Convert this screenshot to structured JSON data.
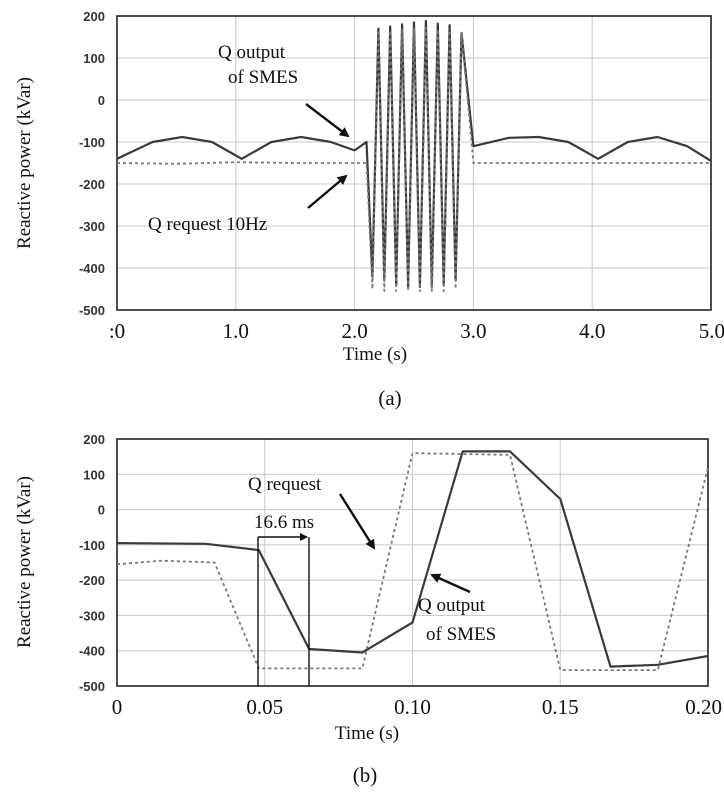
{
  "chart_data": [
    {
      "panel": "(a)",
      "type": "line",
      "xlabel": "Time (s)",
      "ylabel": "Reactive power (kVar)",
      "xlim": [
        0,
        5.0
      ],
      "ylim": [
        -500,
        200
      ],
      "x_ticks": [
        ":0",
        "1.0",
        "2.0",
        "3.0",
        "4.0",
        "5.0"
      ],
      "y_ticks": [
        "200",
        "100",
        "0",
        "-100",
        "-200",
        "-300",
        "-400",
        "-500"
      ],
      "grid": true,
      "series": [
        {
          "name": "Q output of SMES",
          "style": "solid",
          "x": [
            0,
            0.3,
            0.55,
            0.8,
            1.05,
            1.3,
            1.55,
            1.8,
            2.0,
            2.1,
            2.15,
            2.2,
            2.25,
            2.3,
            2.35,
            2.4,
            2.45,
            2.5,
            2.55,
            2.6,
            2.65,
            2.7,
            2.75,
            2.8,
            2.85,
            2.9,
            3.0,
            3.3,
            3.55,
            3.8,
            4.05,
            4.3,
            4.55,
            4.8,
            5.0
          ],
          "y": [
            -140,
            -100,
            -88,
            -100,
            -140,
            -100,
            -88,
            -100,
            -120,
            -100,
            -420,
            170,
            -430,
            175,
            -440,
            180,
            -445,
            185,
            -445,
            188,
            -445,
            182,
            -440,
            178,
            -430,
            160,
            -110,
            -90,
            -88,
            -100,
            -140,
            -100,
            -88,
            -110,
            -145
          ]
        },
        {
          "name": "Q request 10Hz",
          "style": "dashed",
          "x": [
            0,
            0.5,
            1.0,
            1.5,
            2.0,
            2.1,
            2.15,
            2.2,
            2.25,
            2.3,
            2.35,
            2.4,
            2.45,
            2.5,
            2.55,
            2.6,
            2.65,
            2.7,
            2.75,
            2.8,
            2.85,
            2.9,
            3.0,
            3.5,
            4.0,
            4.5,
            5.0
          ],
          "y": [
            -150,
            -152,
            -148,
            -150,
            -150,
            -150,
            -450,
            160,
            -455,
            165,
            -455,
            170,
            -455,
            170,
            -455,
            172,
            -455,
            168,
            -455,
            165,
            -450,
            160,
            -150,
            -150,
            -150,
            -150,
            -150
          ]
        }
      ],
      "annotations": [
        {
          "text_lines": [
            "Q output",
            "of SMES"
          ],
          "target": "Q output of SMES"
        },
        {
          "text_lines": [
            "Q request 10Hz"
          ],
          "target": "Q request 10Hz"
        }
      ]
    },
    {
      "panel": "(b)",
      "type": "line",
      "xlabel": "Time (s)",
      "ylabel": "Reactive power (kVar)",
      "xlim": [
        0,
        0.2
      ],
      "ylim": [
        -500,
        200
      ],
      "x_ticks": [
        "0",
        "0.05",
        "0.10",
        "0.15",
        "0.20"
      ],
      "y_ticks": [
        "200",
        "100",
        "0",
        "-100",
        "-200",
        "-300",
        "-400",
        "-500"
      ],
      "grid": true,
      "series": [
        {
          "name": "Q output of SMES",
          "style": "solid",
          "x": [
            0,
            0.03,
            0.048,
            0.065,
            0.083,
            0.1,
            0.117,
            0.133,
            0.15,
            0.167,
            0.183,
            0.2
          ],
          "y": [
            -95,
            -97,
            -115,
            -395,
            -405,
            -320,
            165,
            165,
            30,
            -445,
            -440,
            -415
          ]
        },
        {
          "name": "Q request",
          "style": "dashed",
          "x": [
            0,
            0.015,
            0.033,
            0.048,
            0.083,
            0.1,
            0.133,
            0.15,
            0.183,
            0.2
          ],
          "y": [
            -155,
            -145,
            -150,
            -450,
            -450,
            160,
            155,
            -455,
            -455,
            120
          ]
        }
      ],
      "annotations": [
        {
          "text_lines": [
            "Q request"
          ],
          "target": "Q request"
        },
        {
          "text_lines": [
            "Q output",
            "of SMES"
          ],
          "target": "Q output of SMES"
        },
        {
          "text_lines": [
            "16.6 ms"
          ],
          "target": "interval"
        }
      ]
    }
  ]
}
